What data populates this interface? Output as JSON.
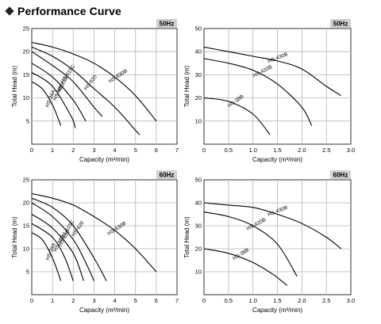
{
  "page": {
    "title": "Performance Curve"
  },
  "chart_data": [
    {
      "type": "line",
      "badge": "50Hz",
      "xlabel": "Capacity (m³/min)",
      "ylabel": "Total Head (m)",
      "xlim": [
        0,
        7
      ],
      "ylim": [
        0,
        25
      ],
      "xticks": [
        "0",
        "1",
        "2",
        "3",
        "4",
        "5",
        "6",
        "7"
      ],
      "yticks": [
        "5",
        "10",
        "15",
        "20",
        "25"
      ],
      "series": [
        {
          "name": "HS-830B",
          "x": [
            0,
            1,
            2,
            3,
            4,
            5,
            6
          ],
          "y": [
            22,
            21,
            19.5,
            17.5,
            14.5,
            10.5,
            5
          ]
        },
        {
          "name": "HS-620",
          "x": [
            0,
            1,
            2,
            3,
            4,
            5,
            5.2
          ],
          "y": [
            21,
            19,
            16,
            12,
            8,
            3,
            2
          ]
        },
        {
          "name": "HS-615C",
          "x": [
            0,
            1,
            2,
            3,
            3.4
          ],
          "y": [
            20,
            17,
            13.5,
            8,
            6
          ]
        },
        {
          "name": "HS-610",
          "x": [
            0,
            1,
            2,
            2.6
          ],
          "y": [
            17.5,
            14.5,
            9.5,
            5
          ]
        },
        {
          "name": "HS-48E",
          "x": [
            0,
            1,
            1.9,
            2.1
          ],
          "y": [
            15.5,
            12.5,
            6,
            3.5
          ]
        },
        {
          "name": "HS-34A",
          "x": [
            0,
            0.5,
            1,
            1.4
          ],
          "y": [
            13.5,
            12,
            8.5,
            4
          ]
        }
      ]
    },
    {
      "type": "line",
      "badge": "50Hz",
      "xlabel": "Capacity (m³/min)",
      "ylabel": "Total Head (m)",
      "xlim": [
        0,
        3.0
      ],
      "ylim": [
        0,
        50
      ],
      "xticks": [
        "0",
        "0.5",
        "1.0",
        "1.5",
        "2.0",
        "2.5",
        "3.0"
      ],
      "yticks": [
        "10",
        "20",
        "30",
        "40",
        "50"
      ],
      "series": [
        {
          "name": "HS-430B",
          "x": [
            0,
            0.5,
            1.0,
            1.5,
            2.0,
            2.5,
            2.8
          ],
          "y": [
            42,
            40,
            38,
            36,
            32.5,
            25,
            21
          ]
        },
        {
          "name": "HS-420B",
          "x": [
            0,
            0.5,
            1.0,
            1.5,
            2.0,
            2.2
          ],
          "y": [
            37,
            35,
            32,
            26,
            16,
            8
          ]
        },
        {
          "name": "HS-38B",
          "x": [
            0,
            0.5,
            1.0,
            1.35
          ],
          "y": [
            20,
            18.5,
            13,
            4
          ]
        }
      ]
    },
    {
      "type": "line",
      "badge": "60Hz",
      "xlabel": "Capacity (m³/min)",
      "ylabel": "Total Head (m)",
      "xlim": [
        0,
        7
      ],
      "ylim": [
        0,
        25
      ],
      "xticks": [
        "0",
        "1",
        "2",
        "3",
        "4",
        "5",
        "6",
        "7"
      ],
      "yticks": [
        "5",
        "10",
        "15",
        "20",
        "25"
      ],
      "series": [
        {
          "name": "HS-830B",
          "x": [
            0,
            1,
            2,
            3,
            4,
            5,
            6
          ],
          "y": [
            22,
            21,
            19.5,
            17,
            14,
            10,
            5
          ]
        },
        {
          "name": "HS-620",
          "x": [
            0,
            1,
            2,
            3,
            3.6
          ],
          "y": [
            21,
            19,
            15,
            8,
            3
          ]
        },
        {
          "name": "HS-615C",
          "x": [
            0,
            1,
            2,
            2.6,
            3.0
          ],
          "y": [
            20,
            17,
            12,
            7,
            3
          ]
        },
        {
          "name": "HS-610",
          "x": [
            0,
            1,
            2,
            2.5
          ],
          "y": [
            17.5,
            14.5,
            9,
            3
          ]
        },
        {
          "name": "HS-48E",
          "x": [
            0,
            1,
            1.6,
            2.0
          ],
          "y": [
            15.5,
            12.5,
            8,
            3
          ]
        },
        {
          "name": "HS-34A",
          "x": [
            0,
            0.5,
            1.0,
            1.4
          ],
          "y": [
            13.5,
            12,
            8,
            3
          ]
        }
      ]
    },
    {
      "type": "line",
      "badge": "60Hz",
      "xlabel": "Capacity (m³/min)",
      "ylabel": "Total Head (m)",
      "xlim": [
        0,
        3.0
      ],
      "ylim": [
        0,
        50
      ],
      "xticks": [
        "0",
        "0.5",
        "1.0",
        "1.5",
        "2.0",
        "2.5",
        "3.0"
      ],
      "yticks": [
        "10",
        "20",
        "30",
        "40",
        "50"
      ],
      "series": [
        {
          "name": "HS-430B",
          "x": [
            0,
            0.5,
            1.0,
            1.5,
            2.0,
            2.5,
            2.8
          ],
          "y": [
            40,
            39,
            38,
            35,
            31,
            25,
            20
          ]
        },
        {
          "name": "HS-420B",
          "x": [
            0,
            0.5,
            1.0,
            1.5,
            1.9
          ],
          "y": [
            36,
            34,
            30,
            22,
            8
          ]
        },
        {
          "name": "HS-38B",
          "x": [
            0,
            0.5,
            1.0,
            1.4,
            1.7
          ],
          "y": [
            20,
            18,
            14,
            9,
            4
          ]
        }
      ]
    }
  ],
  "style": {
    "grid_line": "#b5b5b5",
    "plot_bg": "#ffffff",
    "badge_bg": "#d0d0d0",
    "curve": "#000000"
  }
}
